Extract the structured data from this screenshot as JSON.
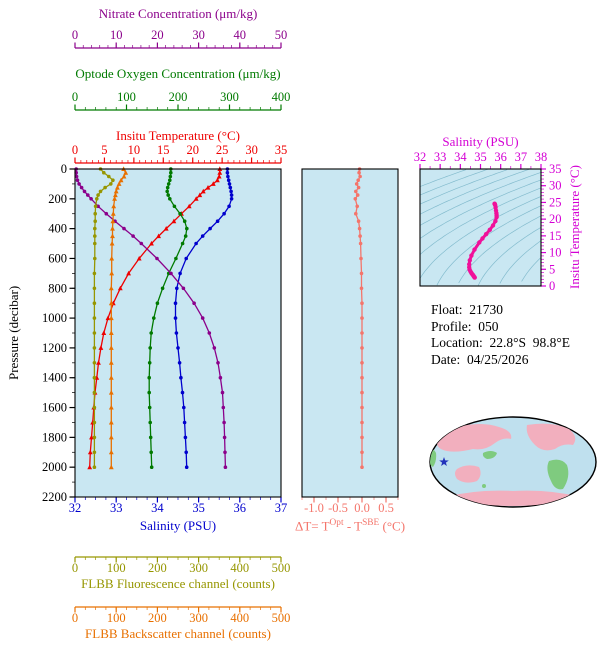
{
  "colors": {
    "nitrate": "#8B008B",
    "oxygen": "#007A00",
    "temperature": "#EE0000",
    "salinity": "#0000CD",
    "fluorescence": "#969600",
    "backscatter": "#E87000",
    "delta_t": "#F4756B",
    "ts_axis": "#D400D4",
    "ts_curve": "#F0109A",
    "plot_bg": "#C9E7F2",
    "contour": "#84BCCE",
    "map_ocean": "#BFE0EE",
    "map_land_pink": "#F2AFbE",
    "map_land_green": "#7FCB7F",
    "star": "#2233BB",
    "pressure_axis": "#000000"
  },
  "info": {
    "lines": [
      "Float:  21730",
      "Profile:  050",
      "Location:  22.8°S  98.8°E",
      "Date:  04/25/2026"
    ]
  },
  "chart_data": [
    {
      "id": "profiles",
      "type": "line",
      "title": "Multi-parameter vertical profiles vs pressure",
      "y_axis": {
        "label": "Pressure (decibar)",
        "range": [
          0,
          2200
        ],
        "ticks": [
          0,
          200,
          400,
          600,
          800,
          1000,
          1200,
          1400,
          1600,
          1800,
          2000,
          2200
        ],
        "minor_step": 100
      },
      "x_axes": [
        {
          "id": "nitrate",
          "label": "Nitrate Concentration (μm/kg)",
          "range": [
            0,
            50
          ],
          "ticks": [
            0,
            10,
            20,
            30,
            40,
            50
          ],
          "minor_step": 2,
          "color": "#8B008B",
          "position": "top"
        },
        {
          "id": "oxygen",
          "label": "Optode Oxygen Concentration (μm/kg)",
          "range": [
            0,
            400
          ],
          "ticks": [
            0,
            100,
            200,
            300,
            400
          ],
          "minor_step": 20,
          "color": "#007A00",
          "position": "top"
        },
        {
          "id": "temperature",
          "label": "Insitu Temperature (°C)",
          "range": [
            0,
            35
          ],
          "ticks": [
            0,
            5,
            10,
            15,
            20,
            25,
            30,
            35
          ],
          "minor_step": 1,
          "color": "#EE0000",
          "position": "top"
        },
        {
          "id": "salinity",
          "label": "Salinity (PSU)",
          "range": [
            32,
            37
          ],
          "ticks": [
            32,
            33,
            34,
            35,
            36,
            37
          ],
          "minor_step": 0.25,
          "color": "#0000CD",
          "position": "bottom"
        },
        {
          "id": "fluorescence",
          "label": "FLBB Fluorescence channel (counts)",
          "range": [
            0,
            500
          ],
          "ticks": [
            0,
            100,
            200,
            300,
            400,
            500
          ],
          "minor_step": 25,
          "color": "#969600",
          "position": "bottom-detached"
        },
        {
          "id": "backscatter",
          "label": "FLBB Backscatter channel (counts)",
          "range": [
            0,
            500
          ],
          "ticks": [
            0,
            100,
            200,
            300,
            400,
            500
          ],
          "minor_step": 25,
          "color": "#E87000",
          "position": "bottom-detached"
        }
      ],
      "pressure": [
        0,
        25,
        50,
        75,
        100,
        125,
        150,
        175,
        200,
        250,
        300,
        350,
        400,
        450,
        500,
        600,
        700,
        800,
        900,
        1000,
        1100,
        1200,
        1300,
        1400,
        1500,
        1600,
        1700,
        1800,
        1900,
        2000
      ],
      "series": [
        {
          "name": "Insitu Temperature",
          "axis": "temperature",
          "color": "#EE0000",
          "marker": "triangle",
          "values": [
            24.6,
            24.6,
            24.5,
            24.2,
            23.5,
            22.6,
            21.8,
            21.2,
            20.6,
            19.4,
            18.1,
            16.8,
            15.5,
            14.2,
            13.0,
            10.9,
            9.1,
            7.7,
            6.5,
            5.6,
            4.9,
            4.4,
            4.0,
            3.7,
            3.4,
            3.2,
            3.0,
            2.8,
            2.6,
            2.5
          ]
        },
        {
          "name": "Salinity",
          "axis": "salinity",
          "color": "#0000CD",
          "marker": "circle",
          "values": [
            35.7,
            35.7,
            35.71,
            35.73,
            35.75,
            35.77,
            35.79,
            35.8,
            35.8,
            35.74,
            35.62,
            35.46,
            35.28,
            35.1,
            34.94,
            34.7,
            34.55,
            34.47,
            34.44,
            34.44,
            34.46,
            34.5,
            34.54,
            34.57,
            34.61,
            34.64,
            34.66,
            34.68,
            34.7,
            34.71
          ]
        },
        {
          "name": "Optode Oxygen Concentration",
          "axis": "oxygen",
          "color": "#007A00",
          "marker": "circle",
          "values": [
            186,
            186,
            185,
            184,
            182,
            180,
            179,
            181,
            184,
            193,
            204,
            213,
            217,
            215,
            209,
            196,
            182,
            170,
            160,
            153,
            148,
            146,
            145,
            144,
            144,
            145,
            146,
            147,
            148,
            149
          ]
        },
        {
          "name": "Nitrate Concentration",
          "axis": "nitrate",
          "color": "#8B008B",
          "marker": "circle",
          "values": [
            0.3,
            0.3,
            0.4,
            0.6,
            1.0,
            1.6,
            2.3,
            3.1,
            3.9,
            5.6,
            7.6,
            9.7,
            11.9,
            14.1,
            16.1,
            19.9,
            23.3,
            26.3,
            28.9,
            31.0,
            32.6,
            33.8,
            34.7,
            35.3,
            35.8,
            36.0,
            36.2,
            36.3,
            36.4,
            36.5
          ]
        },
        {
          "name": "FLBB Fluorescence channel",
          "axis": "fluorescence",
          "color": "#969600",
          "marker": "circle",
          "values": [
            62,
            70,
            82,
            92,
            87,
            73,
            62,
            56,
            53,
            50,
            49,
            49,
            48,
            48,
            48,
            48,
            47,
            47,
            47,
            47,
            47,
            47,
            47,
            47,
            47,
            47,
            47,
            47,
            47,
            47
          ]
        },
        {
          "name": "FLBB Backscatter channel",
          "axis": "backscatter",
          "color": "#E87000",
          "marker": "triangle",
          "values": [
            118,
            123,
            119,
            112,
            107,
            103,
            100,
            98,
            96,
            94,
            93,
            92,
            91,
            91,
            90,
            89,
            89,
            88,
            88,
            88,
            88,
            88,
            88,
            88,
            88,
            88,
            88,
            88,
            88,
            88
          ]
        }
      ]
    },
    {
      "id": "delta_t",
      "type": "line",
      "title": "Optode minus SBE temperature difference vs pressure",
      "x_axis": {
        "label_parts": {
          "p1": "ΔT= T",
          "sup1": "Opt",
          "p2": " - T",
          "sup2": "SBE",
          "p3": " (°C)"
        },
        "range": [
          -1.25,
          0.75
        ],
        "ticks": [
          -1.0,
          -0.5,
          0.0,
          0.5
        ],
        "tick_labels": [
          "-1.0",
          "-0.5",
          "0.0",
          "0.5"
        ],
        "minor_step": 0.25,
        "color": "#F4756B"
      },
      "pressure": [
        0,
        25,
        50,
        75,
        100,
        125,
        150,
        175,
        200,
        250,
        300,
        350,
        400,
        450,
        500,
        600,
        700,
        800,
        900,
        1000,
        1100,
        1200,
        1300,
        1400,
        1500,
        1600,
        1700,
        1800,
        1900,
        2000
      ],
      "values": [
        -0.05,
        -0.06,
        -0.04,
        -0.08,
        -0.11,
        -0.07,
        -0.13,
        -0.09,
        -0.14,
        -0.1,
        -0.13,
        -0.07,
        -0.05,
        -0.04,
        -0.03,
        -0.02,
        -0.01,
        -0.01,
        0.0,
        0.0,
        0.0,
        0.0,
        0.0,
        0.0,
        0.0,
        0.0,
        0.0,
        0.0,
        0.0,
        0.0
      ]
    },
    {
      "id": "ts_diagram",
      "type": "scatter",
      "title": "Temperature-Salinity diagram with isopycnal contours",
      "x_axis": {
        "label": "Salinity (PSU)",
        "range": [
          32,
          38
        ],
        "ticks": [
          32,
          33,
          34,
          35,
          36,
          37,
          38
        ],
        "minor_step": 0.5,
        "color": "#D400D4"
      },
      "y_axis": {
        "label": "Insitu Temperature (°C)",
        "range": [
          0,
          35
        ],
        "ticks": [
          0,
          5,
          10,
          15,
          20,
          25,
          30,
          35
        ],
        "minor_step": 1,
        "color": "#D400D4"
      },
      "curve_source": {
        "x": "Salinity profile values",
        "y": "Insitu Temperature profile values"
      },
      "contours": "isopycnals"
    }
  ]
}
